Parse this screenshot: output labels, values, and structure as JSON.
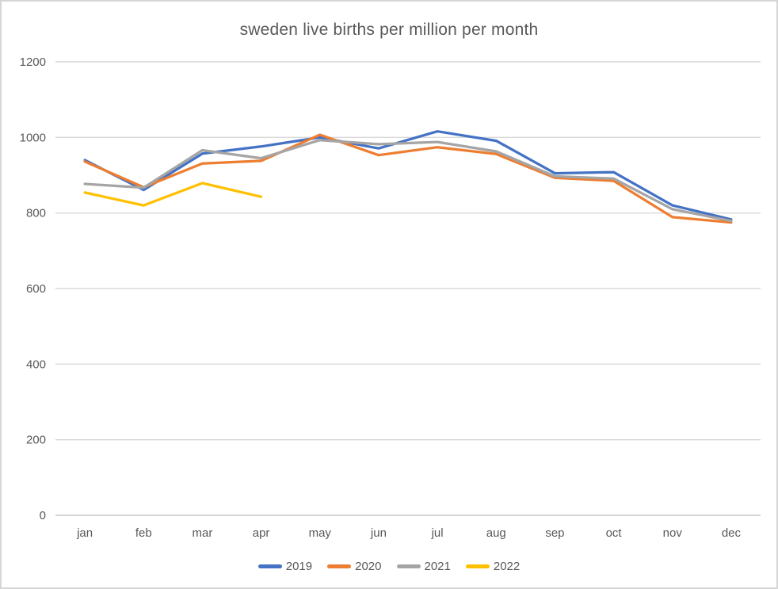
{
  "chart_data": {
    "type": "line",
    "title": "sweden live births per million per month",
    "categories": [
      "jan",
      "feb",
      "mar",
      "apr",
      "may",
      "jun",
      "jul",
      "aug",
      "sep",
      "oct",
      "nov",
      "dec"
    ],
    "series": [
      {
        "name": "2019",
        "color": "#4472C4",
        "values": [
          940,
          861,
          957,
          976,
          1000,
          971,
          1016,
          991,
          905,
          908,
          820,
          783
        ]
      },
      {
        "name": "2020",
        "color": "#ED7D31",
        "values": [
          936,
          868,
          931,
          938,
          1007,
          953,
          974,
          956,
          893,
          885,
          789,
          775
        ]
      },
      {
        "name": "2021",
        "color": "#A5A5A5",
        "values": [
          877,
          867,
          966,
          945,
          993,
          982,
          988,
          963,
          897,
          891,
          810,
          779
        ]
      },
      {
        "name": "2022",
        "color": "#FFC000",
        "values": [
          854,
          820,
          879,
          843
        ]
      }
    ],
    "y_axis": {
      "min": 0,
      "max": 1200,
      "step": 200,
      "tick_labels": [
        "0",
        "200",
        "400",
        "600",
        "800",
        "1000",
        "1200"
      ]
    },
    "x_axis_labels": [
      "jan",
      "feb",
      "mar",
      "apr",
      "may",
      "jun",
      "jul",
      "aug",
      "sep",
      "oct",
      "nov",
      "dec"
    ],
    "legend_position": "bottom",
    "legend_entries": [
      "2019",
      "2020",
      "2021",
      "2022"
    ],
    "grid": true,
    "styling": {
      "grid_color": "#D9D9D9",
      "axis_line_color": "#C8C8C8",
      "axis_text_color": "#595959",
      "title_color": "#595959",
      "background": "#FFFFFF",
      "frame_border_color": "#D6D6D6",
      "line_width": 3.25
    }
  }
}
